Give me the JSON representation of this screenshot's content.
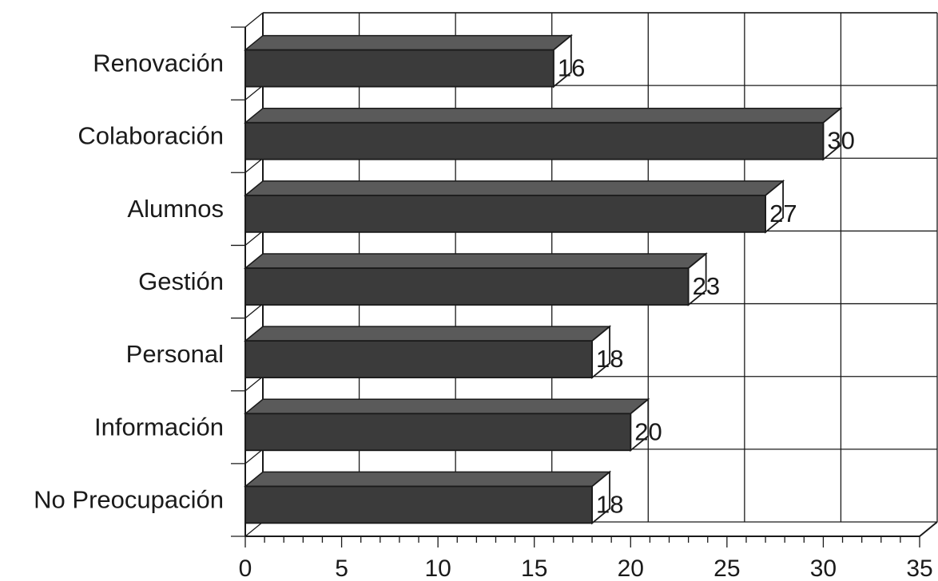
{
  "chart_data": {
    "type": "bar",
    "orientation": "horizontal",
    "style": "3d",
    "categories": [
      "Renovación",
      "Colaboración",
      "Alumnos",
      "Gestión",
      "Personal",
      "Información",
      "No Preocupación"
    ],
    "values": [
      16,
      30,
      27,
      23,
      18,
      20,
      18
    ],
    "data_labels": [
      "16",
      "30",
      "27",
      "23",
      "18",
      "20",
      "18"
    ],
    "xlim": [
      0,
      35
    ],
    "xticks": [
      0,
      5,
      10,
      15,
      20,
      25,
      30,
      35
    ],
    "xtick_labels": [
      "0",
      "5",
      "10",
      "15",
      "20",
      "25",
      "30",
      "35"
    ],
    "grid": true,
    "legend": "none",
    "bar_color": "#3b3b3b",
    "bar_top_color": "#5a5a5a",
    "grid_color": "#1a1a1a",
    "title": "",
    "xlabel": "",
    "ylabel": ""
  }
}
